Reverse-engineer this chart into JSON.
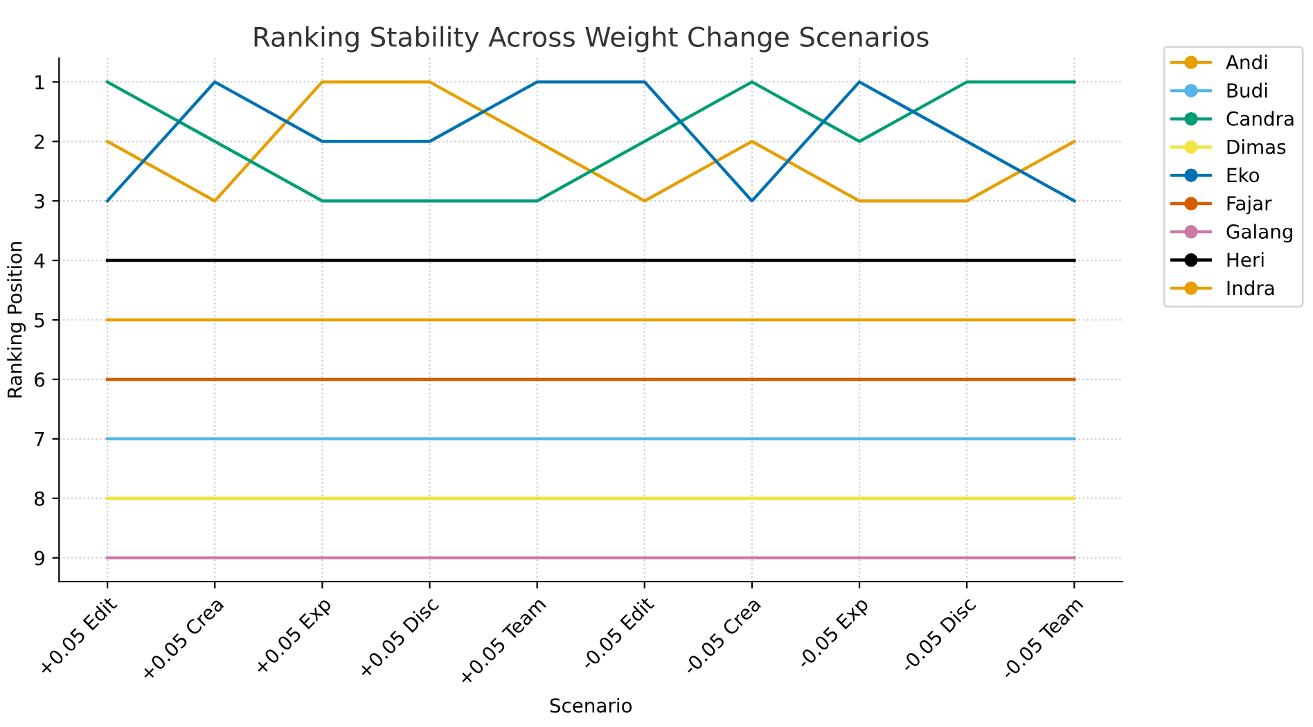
{
  "chart_data": {
    "type": "line",
    "title": "Ranking Stability Across Weight Change Scenarios",
    "xlabel": "Scenario",
    "ylabel": "Ranking Position",
    "categories": [
      "+0.05 Edit",
      "+0.05 Crea",
      "+0.05 Exp",
      "+0.05 Disc",
      "+0.05 Team",
      "-0.05 Edit",
      "-0.05 Crea",
      "-0.05 Exp",
      "-0.05 Disc",
      "-0.05 Team"
    ],
    "series": [
      {
        "name": "Andi",
        "color": "#e69f00",
        "values": [
          2,
          3,
          1,
          1,
          2,
          3,
          2,
          3,
          3,
          2
        ]
      },
      {
        "name": "Budi",
        "color": "#56b4e9",
        "values": [
          7,
          7,
          7,
          7,
          7,
          7,
          7,
          7,
          7,
          7
        ]
      },
      {
        "name": "Candra",
        "color": "#009e73",
        "values": [
          1,
          2,
          3,
          3,
          3,
          2,
          1,
          2,
          1,
          1
        ]
      },
      {
        "name": "Dimas",
        "color": "#f0e442",
        "values": [
          8,
          8,
          8,
          8,
          8,
          8,
          8,
          8,
          8,
          8
        ]
      },
      {
        "name": "Eko",
        "color": "#0072b2",
        "values": [
          3,
          1,
          2,
          2,
          1,
          1,
          3,
          1,
          2,
          3
        ]
      },
      {
        "name": "Fajar",
        "color": "#d55e00",
        "values": [
          6,
          6,
          6,
          6,
          6,
          6,
          6,
          6,
          6,
          6
        ]
      },
      {
        "name": "Galang",
        "color": "#cc79a7",
        "values": [
          9,
          9,
          9,
          9,
          9,
          9,
          9,
          9,
          9,
          9
        ]
      },
      {
        "name": "Heri",
        "color": "#000000",
        "values": [
          4,
          4,
          4,
          4,
          4,
          4,
          4,
          4,
          4,
          4
        ]
      },
      {
        "name": "Indra",
        "color": "#e69f00",
        "values": [
          5,
          5,
          5,
          5,
          5,
          5,
          5,
          5,
          5,
          5
        ]
      }
    ],
    "ylim": [
      9.4,
      0.6
    ],
    "yticks": [
      1,
      2,
      3,
      4,
      5,
      6,
      7,
      8,
      9
    ],
    "grid": true,
    "legend": "top right",
    "line_style": "solid"
  }
}
